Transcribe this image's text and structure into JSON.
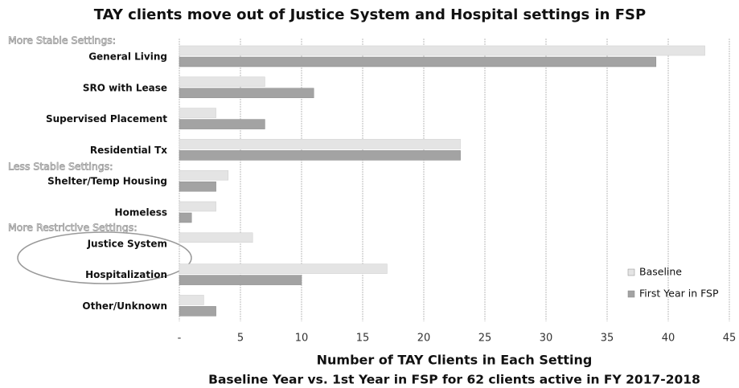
{
  "chart_data": {
    "type": "bar",
    "orientation": "horizontal",
    "title": "TAY clients move out of Justice System and Hospital settings in FSP",
    "xlabel": "Number of TAY Clients in Each Setting",
    "subtitle": "Baseline Year vs. 1st Year in FSP for 62 clients active in FY 2017-2018",
    "annotations": [
      "More Stable Settings:",
      "Less Stable Settings:",
      "More Restrictive Settings:"
    ],
    "categories": [
      "General Living",
      "SRO with Lease",
      "Supervised Placement",
      "Residential Tx",
      "Shelter/Temp Housing",
      "Homeless",
      "Justice System",
      "Hospitalization",
      "Other/Unknown"
    ],
    "series": [
      {
        "name": "Baseline",
        "color": "#e4e4e4",
        "values": [
          43,
          7,
          3,
          23,
          4,
          3,
          6,
          17,
          2
        ]
      },
      {
        "name": "First Year in FSP",
        "color": "#a3a3a3",
        "values": [
          39,
          11,
          7,
          23,
          3,
          1,
          0,
          10,
          3
        ]
      }
    ],
    "xlim": [
      0,
      45
    ],
    "xticks": [
      {
        "value": 0,
        "label": "-"
      },
      5,
      10,
      15,
      20,
      25,
      30,
      35,
      40,
      45
    ],
    "grid": true,
    "legend": "lower right"
  }
}
